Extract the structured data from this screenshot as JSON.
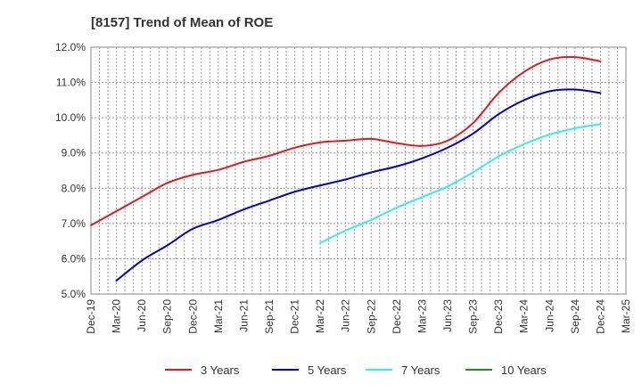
{
  "chart_data": {
    "type": "line",
    "title": "[8157]  Trend of Mean of ROE",
    "xlabel": "",
    "ylabel": "",
    "x_categories": [
      "Dec-19",
      "Mar-20",
      "Jun-20",
      "Sep-20",
      "Dec-20",
      "Mar-21",
      "Jun-21",
      "Sep-21",
      "Dec-21",
      "Mar-22",
      "Jun-22",
      "Sep-22",
      "Dec-22",
      "Mar-23",
      "Jun-23",
      "Sep-23",
      "Dec-23",
      "Mar-24",
      "Jun-24",
      "Sep-24",
      "Dec-24",
      "Mar-25"
    ],
    "y_ticks": [
      "5.0%",
      "6.0%",
      "7.0%",
      "8.0%",
      "9.0%",
      "10.0%",
      "11.0%",
      "12.0%"
    ],
    "ylim": [
      5.0,
      12.0
    ],
    "grid": true,
    "legend_position": "bottom",
    "series": [
      {
        "name": "3 Years",
        "color": "#e31a1c",
        "x": [
          "Dec-19",
          "Mar-20",
          "Jun-20",
          "Sep-20",
          "Dec-20",
          "Mar-21",
          "Jun-21",
          "Sep-21",
          "Dec-21",
          "Mar-22",
          "Jun-22",
          "Sep-22",
          "Dec-22",
          "Mar-23",
          "Jun-23",
          "Sep-23",
          "Dec-23",
          "Mar-24",
          "Jun-24",
          "Sep-24",
          "Dec-24"
        ],
        "values": [
          6.95,
          7.35,
          7.75,
          8.15,
          8.38,
          8.52,
          8.75,
          8.92,
          9.15,
          9.3,
          9.35,
          9.4,
          9.28,
          9.2,
          9.35,
          9.85,
          10.7,
          11.3,
          11.65,
          11.72,
          11.6
        ]
      },
      {
        "name": "5 Years",
        "color": "#0000cc",
        "x": [
          "Mar-20",
          "Jun-20",
          "Sep-20",
          "Dec-20",
          "Mar-21",
          "Jun-21",
          "Sep-21",
          "Dec-21",
          "Mar-22",
          "Jun-22",
          "Sep-22",
          "Dec-22",
          "Mar-23",
          "Jun-23",
          "Sep-23",
          "Dec-23",
          "Mar-24",
          "Jun-24",
          "Sep-24",
          "Dec-24"
        ],
        "values": [
          5.38,
          5.95,
          6.38,
          6.85,
          7.1,
          7.4,
          7.65,
          7.9,
          8.08,
          8.25,
          8.45,
          8.62,
          8.85,
          9.15,
          9.55,
          10.1,
          10.5,
          10.75,
          10.8,
          10.7
        ]
      },
      {
        "name": "7 Years",
        "color": "#33eeee",
        "x": [
          "Mar-22",
          "Jun-22",
          "Sep-22",
          "Dec-22",
          "Mar-23",
          "Jun-23",
          "Sep-23",
          "Dec-23",
          "Mar-24",
          "Jun-24",
          "Sep-24",
          "Dec-24"
        ],
        "values": [
          6.45,
          6.8,
          7.1,
          7.45,
          7.75,
          8.05,
          8.45,
          8.9,
          9.25,
          9.52,
          9.7,
          9.82
        ]
      },
      {
        "name": "10 Years",
        "color": "#228b22",
        "x": [],
        "values": []
      }
    ]
  }
}
